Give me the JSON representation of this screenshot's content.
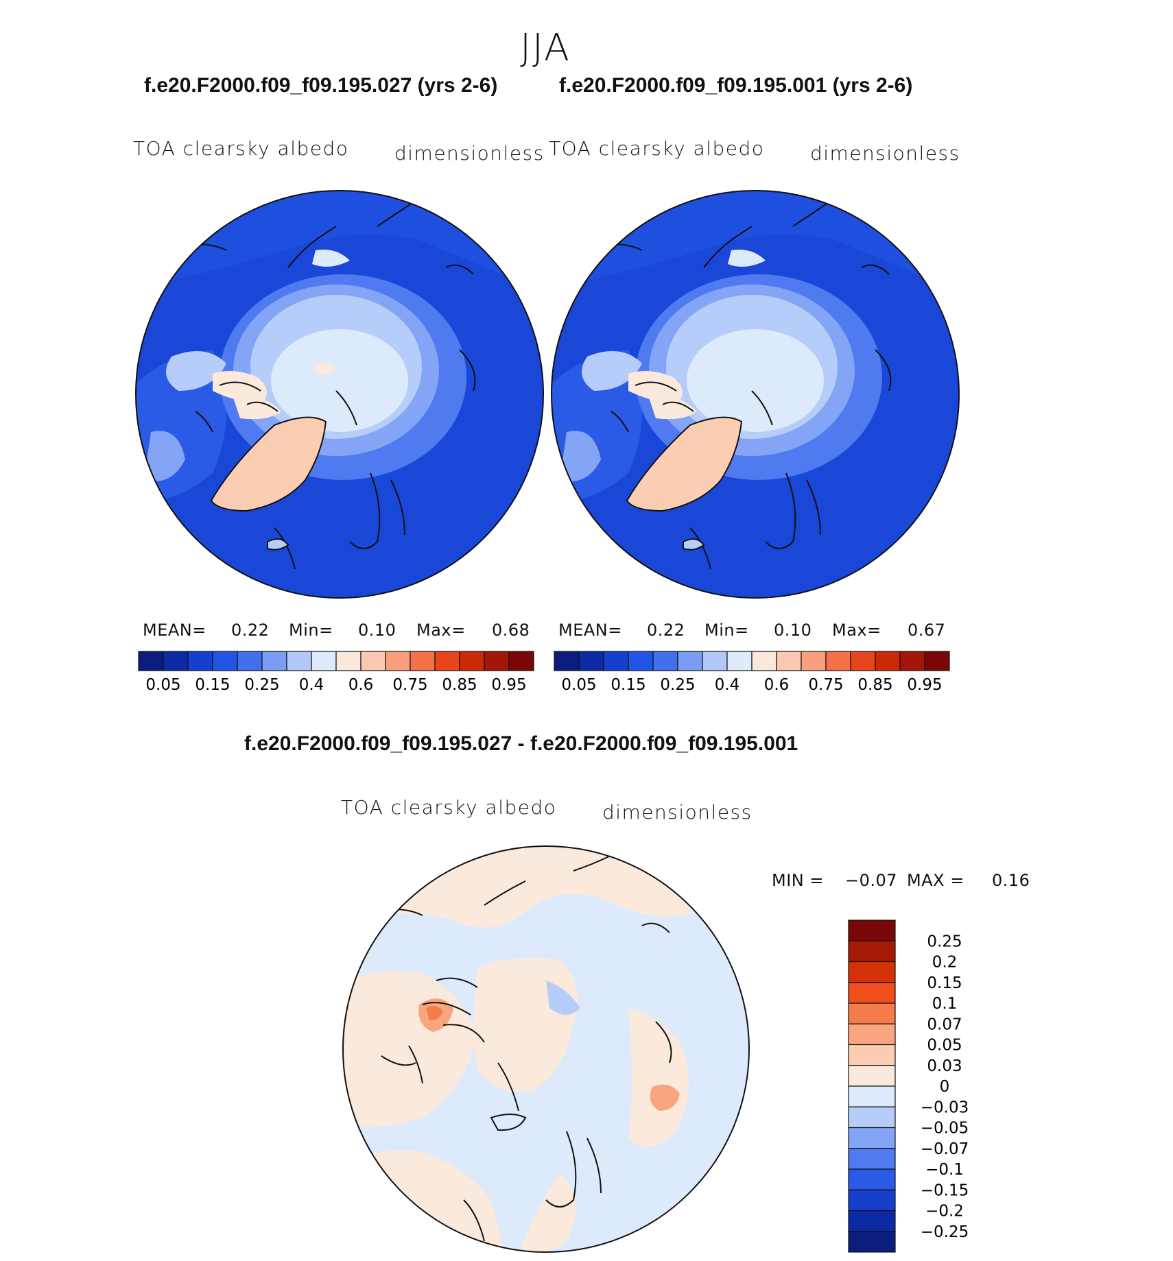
{
  "figure": {
    "season": "JJA",
    "variable": "TOA clearsky albedo",
    "units": "dimensionless"
  },
  "panels": [
    {
      "id": "case",
      "title": "f.e20.F2000.f09_f09.195.027 (yrs 2-6)",
      "field": "TOA clearsky albedo",
      "units": "dimensionless",
      "mean_label": "MEAN=",
      "mean": "0.22",
      "min_label": "Min=",
      "min": "0.10",
      "max_label": "Max=",
      "max": "0.68"
    },
    {
      "id": "control",
      "title": "f.e20.F2000.f09_f09.195.001 (yrs 2-6)",
      "field": "TOA clearsky albedo",
      "units": "dimensionless",
      "mean_label": "MEAN=",
      "mean": "0.22",
      "min_label": "Min=",
      "min": "0.10",
      "max_label": "Max=",
      "max": "0.67"
    }
  ],
  "difference": {
    "title": "f.e20.F2000.f09_f09.195.027 - f.e20.F2000.f09_f09.195.001",
    "field": "TOA clearsky albedo",
    "units": "dimensionless",
    "min_label": "MIN =",
    "min": "−0.07",
    "max_label": "MAX =",
    "max": "0.16"
  },
  "chart_data": [
    {
      "type": "heatmap",
      "projection": "north-polar-stereographic",
      "title": "f.e20.F2000.f09_f09.195.027 (yrs 2-6)",
      "variable": "TOA clearsky albedo",
      "units": "dimensionless",
      "mean": 0.22,
      "min": 0.1,
      "max": 0.68,
      "colorbar": {
        "orientation": "horizontal",
        "levels": [
          0.05,
          0.1,
          0.15,
          0.2,
          0.25,
          0.3,
          0.4,
          0.5,
          0.6,
          0.7,
          0.75,
          0.8,
          0.85,
          0.9,
          0.95
        ],
        "tick_labels": [
          "0.05",
          "0.15",
          "0.25",
          "0.4",
          "0.6",
          "0.75",
          "0.85",
          "0.95"
        ],
        "colors": [
          "#0b1c80",
          "#0c2aa6",
          "#1540cf",
          "#2255e6",
          "#4070ee",
          "#7a9cf4",
          "#b1c8fa",
          "#dfeafd",
          "#fbe8db",
          "#fbc8b1",
          "#f99f7d",
          "#f47248",
          "#e9451d",
          "#cc2a06",
          "#a3160a",
          "#790707"
        ]
      }
    },
    {
      "type": "heatmap",
      "projection": "north-polar-stereographic",
      "title": "f.e20.F2000.f09_f09.195.001 (yrs 2-6)",
      "variable": "TOA clearsky albedo",
      "units": "dimensionless",
      "mean": 0.22,
      "min": 0.1,
      "max": 0.67,
      "colorbar": {
        "orientation": "horizontal",
        "levels": [
          0.05,
          0.1,
          0.15,
          0.2,
          0.25,
          0.3,
          0.4,
          0.5,
          0.6,
          0.7,
          0.75,
          0.8,
          0.85,
          0.9,
          0.95
        ],
        "tick_labels": [
          "0.05",
          "0.15",
          "0.25",
          "0.4",
          "0.6",
          "0.75",
          "0.85",
          "0.95"
        ],
        "colors": [
          "#0b1c80",
          "#0c2aa6",
          "#1540cf",
          "#2255e6",
          "#4070ee",
          "#7a9cf4",
          "#b1c8fa",
          "#dfeafd",
          "#fbe8db",
          "#fbc8b1",
          "#f99f7d",
          "#f47248",
          "#e9451d",
          "#cc2a06",
          "#a3160a",
          "#790707"
        ]
      }
    },
    {
      "type": "heatmap",
      "projection": "north-polar-stereographic",
      "title": "f.e20.F2000.f09_f09.195.027 - f.e20.F2000.f09_f09.195.001",
      "variable": "TOA clearsky albedo",
      "units": "dimensionless",
      "min": -0.07,
      "max": 0.16,
      "colorbar": {
        "orientation": "vertical",
        "tick_labels_top_to_bottom": [
          "0.25",
          "0.2",
          "0.15",
          "0.1",
          "0.07",
          "0.05",
          "0.03",
          "0",
          "−0.03",
          "−0.05",
          "−0.07",
          "−0.1",
          "−0.15",
          "−0.2",
          "−0.25"
        ],
        "colors_top_to_bottom": [
          "#7a0707",
          "#a81a08",
          "#d43206",
          "#f04e1c",
          "#f57b4a",
          "#f9a57f",
          "#fbcdb3",
          "#fbeadc",
          "#dceafc",
          "#b6cdfa",
          "#84a5f6",
          "#4f7af0",
          "#2a5be6",
          "#1640cc",
          "#0c2aa6",
          "#0b1c7c"
        ]
      }
    }
  ]
}
